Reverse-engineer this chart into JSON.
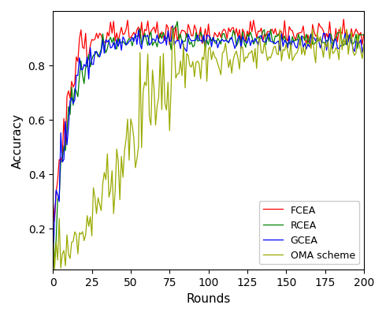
{
  "xlabel": "Rounds",
  "ylabel": "Accuracy",
  "xlim": [
    0,
    200
  ],
  "ylim": [
    0.05,
    1.0
  ],
  "xticks": [
    0,
    25,
    50,
    75,
    100,
    125,
    150,
    175,
    200
  ],
  "yticks": [
    0.2,
    0.4,
    0.6,
    0.8
  ],
  "colors": {
    "FCEA": "red",
    "RCEA": "green",
    "GCEA": "blue",
    "OMA scheme": "#9aaa00"
  },
  "legend_loc": "lower right",
  "seed": 42,
  "n_rounds": 201,
  "figsize": [
    4.9,
    4.02
  ],
  "dpi": 100
}
